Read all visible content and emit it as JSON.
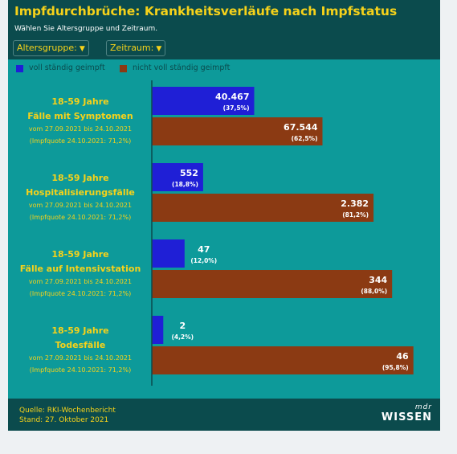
{
  "header": {
    "title": "Impfdurchbrüche: Krankheitsverläufe nach Impfstatus",
    "subtitle": "Wählen Sie Altersgruppe und Zeitraum.",
    "filters": [
      {
        "label": "Altersgruppe:"
      },
      {
        "label": "Zeitraum:"
      }
    ]
  },
  "legend": [
    {
      "label": "voll ständig geimpft",
      "color": "#1f1fd6"
    },
    {
      "label": "nicht voll ständig geimpft",
      "color": "#8b3a13"
    }
  ],
  "chart_data": {
    "type": "bar",
    "orientation": "horizontal",
    "value_scale": "percent-of-row",
    "categories": [
      {
        "line1": "18-59 Jahre",
        "line2": "Fälle mit Symptomen",
        "period": "vom 27.09.2021 bis 24.10.2021",
        "quote": "(Impfquote 24.10.2021: 71,2%)"
      },
      {
        "line1": "18-59 Jahre",
        "line2": "Hospitalisierungsfälle",
        "period": "vom 27.09.2021 bis 24.10.2021",
        "quote": "(Impfquote 24.10.2021: 71,2%)"
      },
      {
        "line1": "18-59 Jahre",
        "line2": "Fälle auf Intensivstation",
        "period": "vom 27.09.2021 bis 24.10.2021",
        "quote": "(Impfquote 24.10.2021: 71,2%)"
      },
      {
        "line1": "18-59 Jahre",
        "line2": "Todesfälle",
        "period": "vom 27.09.2021 bis 24.10.2021",
        "quote": "(Impfquote 24.10.2021: 71,2%)"
      }
    ],
    "series": [
      {
        "name": "voll ständig geimpft",
        "color": "#1f1fd6",
        "values": [
          40467,
          552,
          47,
          2
        ],
        "value_labels": [
          "40.467",
          "552",
          "47",
          "2"
        ],
        "percents": [
          37.5,
          18.8,
          12.0,
          4.2
        ],
        "percent_labels": [
          "(37,5%)",
          "(18,8%)",
          "(12,0%)",
          "(4,2%)"
        ]
      },
      {
        "name": "nicht voll ständig geimpft",
        "color": "#8b3a13",
        "values": [
          67544,
          2382,
          344,
          46
        ],
        "value_labels": [
          "67.544",
          "2.382",
          "344",
          "46"
        ],
        "percents": [
          62.5,
          81.2,
          88.0,
          95.8
        ],
        "percent_labels": [
          "(62,5%)",
          "(81,2%)",
          "(88,0%)",
          "(95,8%)"
        ]
      }
    ],
    "xlim": [
      0,
      100
    ]
  },
  "footer": {
    "source": "Quelle: RKI-Wochenbericht",
    "date": "Stand: 27. Oktober 2021",
    "logo_mdr": "mdr",
    "logo_wissen": "WISSEN"
  }
}
